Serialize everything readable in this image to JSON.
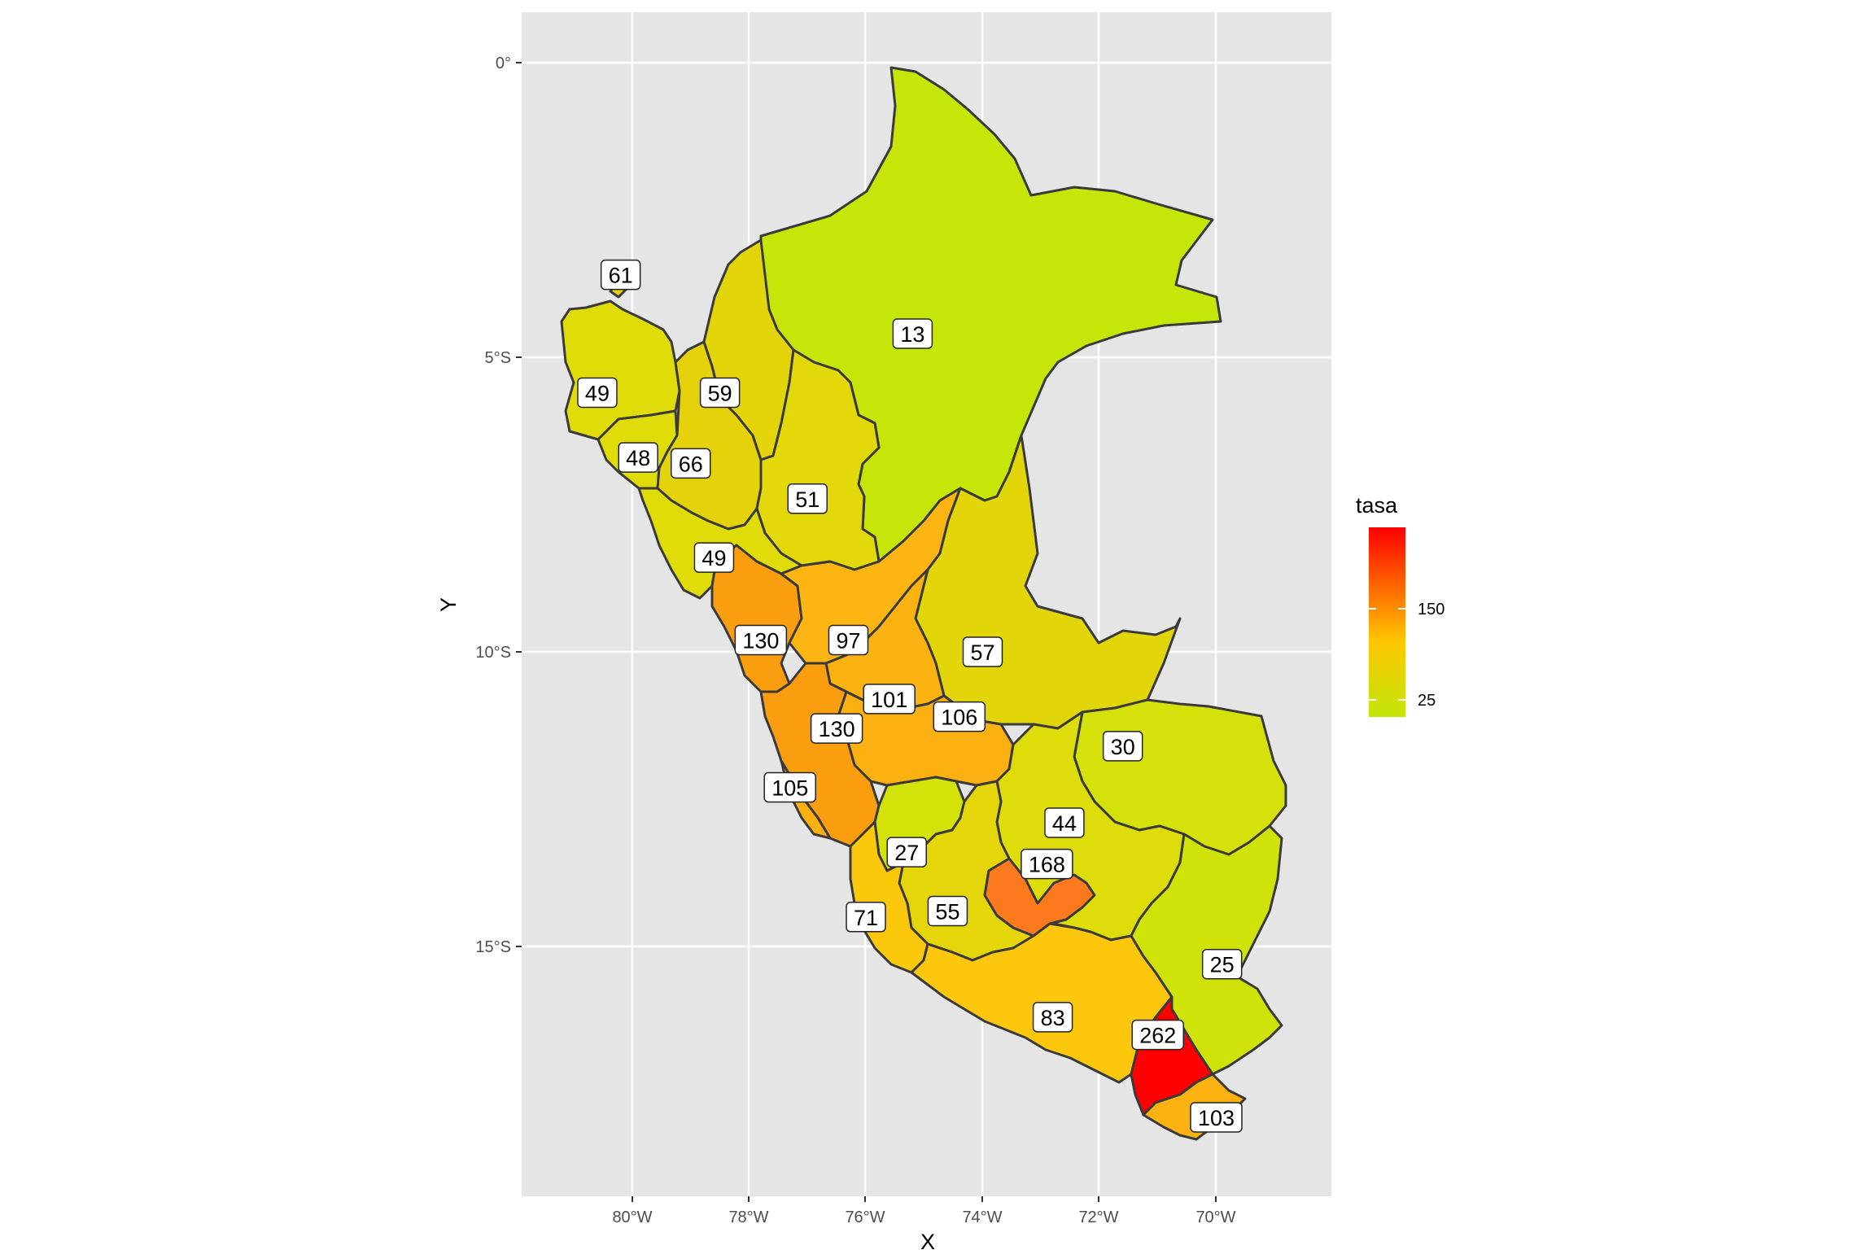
{
  "chart_data": {
    "type": "choropleth",
    "xlabel": "X",
    "ylabel": "Y",
    "x_ticks": [
      "80°W",
      "78°W",
      "76°W",
      "74°W",
      "72°W",
      "70°W"
    ],
    "y_ticks": [
      "0°",
      "5°S",
      "10°S",
      "15°S"
    ],
    "legend": {
      "title": "tasa",
      "placement": "right",
      "low_color": "#c2e60a",
      "high_color": "#ff0000",
      "mid_color": "#ffc600",
      "ticks": [
        "150",
        "25"
      ]
    },
    "regions": [
      {
        "name_code": "tumbes",
        "value": 61,
        "label": "61",
        "lon": -80.2,
        "lat": -3.6,
        "color": "#e6d00a"
      },
      {
        "name_code": "piura",
        "value": 49,
        "label": "49",
        "lon": -80.6,
        "lat": -5.6,
        "color": "#e0dc0a"
      },
      {
        "name_code": "lambayeque",
        "value": 48,
        "label": "48",
        "lon": -79.9,
        "lat": -6.7,
        "color": "#e0dc0a"
      },
      {
        "name_code": "cajamarca",
        "value": 66,
        "label": "66",
        "lon": -79.0,
        "lat": -6.8,
        "color": "#e6d20a"
      },
      {
        "name_code": "amazonas",
        "value": 59,
        "label": "59",
        "lon": -78.5,
        "lat": -5.6,
        "color": "#e4d40a"
      },
      {
        "name_code": "san-martin",
        "value": 51,
        "label": "51",
        "lon": -77.0,
        "lat": -7.4,
        "color": "#e2d80a"
      },
      {
        "name_code": "la-libertad",
        "value": 49,
        "label": "49",
        "lon": -78.6,
        "lat": -8.4,
        "color": "#e0dc0a"
      },
      {
        "name_code": "loreto",
        "value": 13,
        "label": "13",
        "lon": -75.2,
        "lat": -4.6,
        "color": "#c5e608"
      },
      {
        "name_code": "ancash",
        "value": 130,
        "label": "130",
        "lon": -77.8,
        "lat": -9.8,
        "color": "#fa9e10"
      },
      {
        "name_code": "huanuco",
        "value": 97,
        "label": "97",
        "lon": -76.3,
        "lat": -9.8,
        "color": "#fcb512"
      },
      {
        "name_code": "ucayali",
        "value": 57,
        "label": "57",
        "lon": -74.0,
        "lat": -10.0,
        "color": "#e2d60a"
      },
      {
        "name_code": "pasco",
        "value": 101,
        "label": "101",
        "lon": -75.6,
        "lat": -10.8,
        "color": "#fcb312"
      },
      {
        "name_code": "junin",
        "value": 106,
        "label": "106",
        "lon": -74.4,
        "lat": -11.1,
        "color": "#fcb012"
      },
      {
        "name_code": "lima",
        "value": 130,
        "label": "130",
        "lon": -76.5,
        "lat": -11.3,
        "color": "#fa9e10"
      },
      {
        "name_code": "madre-de-dios",
        "value": 30,
        "label": "30",
        "lon": -71.6,
        "lat": -11.6,
        "color": "#d5e10a"
      },
      {
        "name_code": "callao",
        "value": 105,
        "label": "105",
        "lon": -77.3,
        "lat": -12.3,
        "color": "#fcb012"
      },
      {
        "name_code": "cusco",
        "value": 44,
        "label": "44",
        "lon": -72.6,
        "lat": -12.9,
        "color": "#dedc0a"
      },
      {
        "name_code": "huancavelica",
        "value": 27,
        "label": "27",
        "lon": -75.3,
        "lat": -13.4,
        "color": "#d3e30a"
      },
      {
        "name_code": "apurimac",
        "value": 168,
        "label": "168",
        "lon": -72.9,
        "lat": -13.6,
        "color": "#fb7a1e"
      },
      {
        "name_code": "ica",
        "value": 71,
        "label": "71",
        "lon": -76.0,
        "lat": -14.5,
        "color": "#fcc80c"
      },
      {
        "name_code": "ayacucho",
        "value": 55,
        "label": "55",
        "lon": -74.6,
        "lat": -14.4,
        "color": "#e4d60a"
      },
      {
        "name_code": "puno",
        "value": 25,
        "label": "25",
        "lon": -69.9,
        "lat": -15.3,
        "color": "#cfe20a"
      },
      {
        "name_code": "arequipa",
        "value": 83,
        "label": "83",
        "lon": -72.8,
        "lat": -16.2,
        "color": "#fcc70c"
      },
      {
        "name_code": "moquegua",
        "value": 262,
        "label": "262",
        "lon": -71.0,
        "lat": -16.5,
        "color": "#ff0000"
      },
      {
        "name_code": "tacna",
        "value": 103,
        "label": "103",
        "lon": -70.0,
        "lat": -17.9,
        "color": "#fcb312"
      }
    ]
  }
}
